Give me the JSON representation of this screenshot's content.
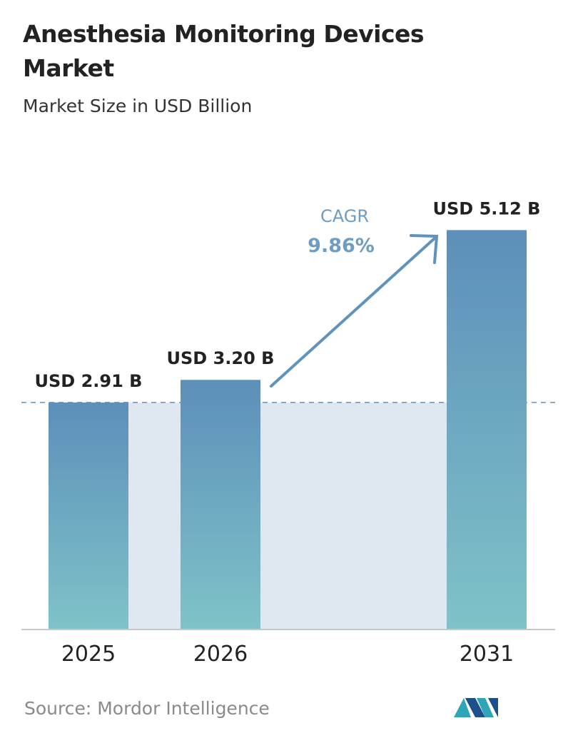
{
  "chart_data": {
    "type": "bar",
    "title": "Anesthesia Monitoring Devices Market",
    "subtitle": "Market Size in USD Billion",
    "categories": [
      "2025",
      "2026",
      "2031"
    ],
    "values": [
      2.91,
      3.2,
      5.12
    ],
    "value_labels": [
      "USD 2.91 B",
      "USD 3.20 B",
      "USD 5.12 B"
    ],
    "color": "#5f93bd",
    "cagr": {
      "label": "CAGR",
      "value": "9.86%"
    },
    "source": "Source: Mordor Intelligence"
  }
}
